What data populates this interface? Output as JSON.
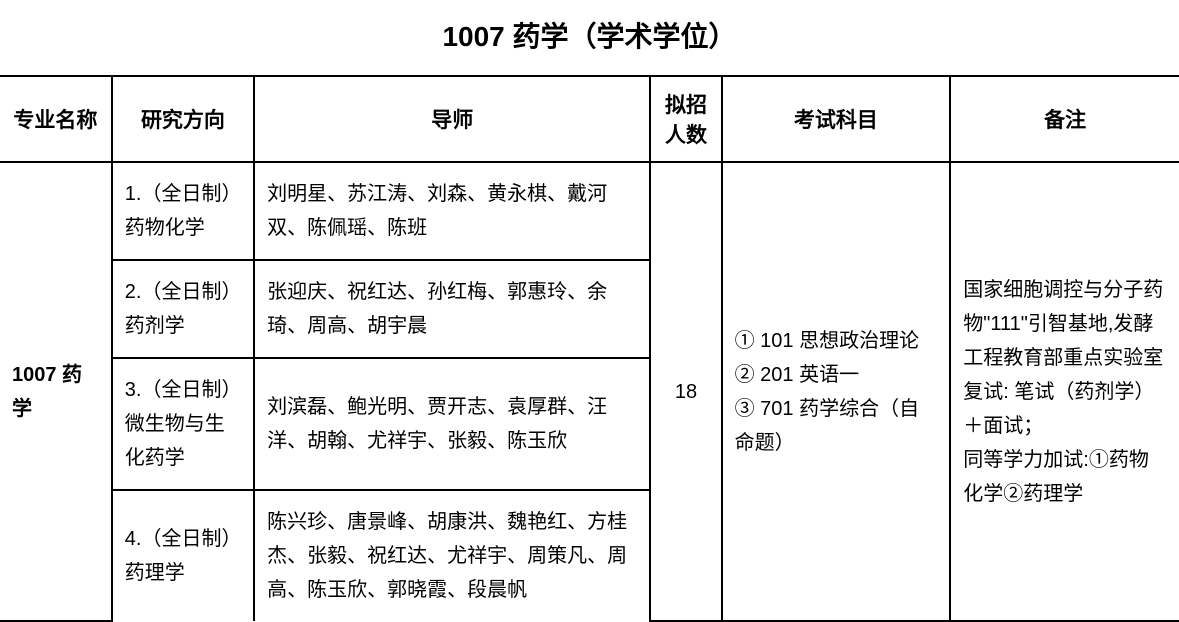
{
  "title": "1007 药学（学术学位）",
  "headers": {
    "major": "专业名称",
    "direction": "研究方向",
    "advisor": "导师",
    "number": "拟招人数",
    "exam": "考试科目",
    "note": "备注"
  },
  "major": "1007 药学",
  "number": "18",
  "exam": "① 101 思想政治理论\n② 201 英语一\n③ 701 药学综合（自命题）",
  "note": "国家细胞调控与分子药物\"111\"引智基地,发酵工程教育部重点实验室\n复试: 笔试（药剂学）＋面试；\n同等学力加试:①药物化学②药理学",
  "rows": [
    {
      "direction": "1.（全日制）药物化学",
      "advisor": "刘明星、苏江涛、刘森、黄永棋、戴河双、陈佩瑶、陈班"
    },
    {
      "direction": "2.（全日制）药剂学",
      "advisor": "张迎庆、祝红达、孙红梅、郭惠玲、余琦、周高、胡宇晨"
    },
    {
      "direction": "3.（全日制）微生物与生化药学",
      "advisor": "刘滨磊、鲍光明、贾开志、袁厚群、汪洋、胡翰、尤祥宇、张毅、陈玉欣"
    },
    {
      "direction": "4.（全日制）药理学",
      "advisor": "陈兴珍、唐景峰、胡康洪、魏艳红、方桂杰、张毅、祝红达、尤祥宇、周策凡、周高、陈玉欣、郭晓霞、段晨帆"
    }
  ]
}
